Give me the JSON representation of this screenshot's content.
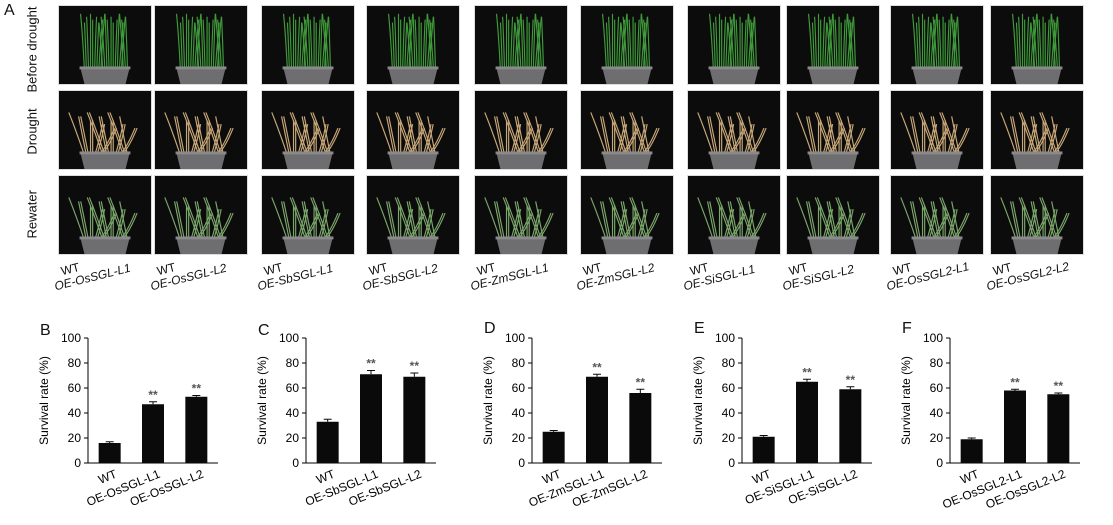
{
  "panel_a": {
    "letter": "A",
    "row_labels": [
      "Before drought",
      "Drought",
      "Rewater"
    ],
    "columns": [
      {
        "wt": "WT",
        "line_prefix": "OE-",
        "line_gene": "OsSGL",
        "line_suffix": "-L1"
      },
      {
        "wt": "WT",
        "line_prefix": "OE-",
        "line_gene": "OsSGL",
        "line_suffix": "-L2"
      },
      {
        "wt": "WT",
        "line_prefix": "OE-",
        "line_gene": "SbSGL",
        "line_suffix": "-L1"
      },
      {
        "wt": "WT",
        "line_prefix": "OE-",
        "line_gene": "SbSGL",
        "line_suffix": "-L2"
      },
      {
        "wt": "WT",
        "line_prefix": "OE-",
        "line_gene": "ZmSGL",
        "line_suffix": "-L1"
      },
      {
        "wt": "WT",
        "line_prefix": "OE-",
        "line_gene": "ZmSGL",
        "line_suffix": "-L2"
      },
      {
        "wt": "WT",
        "line_prefix": "OE-",
        "line_gene": "SiSGL",
        "line_suffix": "-L1"
      },
      {
        "wt": "WT",
        "line_prefix": "OE-",
        "line_gene": "SiSGL",
        "line_suffix": "-L2"
      },
      {
        "wt": "WT",
        "line_prefix": "OE-",
        "line_gene": "OsSGL2",
        "line_suffix": "-L1"
      },
      {
        "wt": "WT",
        "line_prefix": "OE-",
        "line_gene": "OsSGL2",
        "line_suffix": "-L2"
      }
    ],
    "colors": {
      "background": "#0c0c0c",
      "pot": "#6e6e70",
      "healthy": "#3f9a3a",
      "dry": "#c8a878",
      "recovered": "#7aa66a"
    }
  },
  "chart_data": [
    {
      "type": "bar",
      "panel": "B",
      "ylabel": "Survival rate (%)",
      "ylim": [
        0,
        100
      ],
      "yticks": [
        0,
        20,
        40,
        60,
        80,
        100
      ],
      "categories": [
        "WT",
        "OE-OsSGL-L1",
        "OE-OsSGL-L2"
      ],
      "values": [
        16,
        47,
        53
      ],
      "errors": [
        1,
        2,
        1
      ],
      "significance": [
        "",
        "**",
        "**"
      ]
    },
    {
      "type": "bar",
      "panel": "C",
      "ylabel": "Survival rate (%)",
      "ylim": [
        0,
        100
      ],
      "yticks": [
        0,
        20,
        40,
        60,
        80,
        100
      ],
      "categories": [
        "WT",
        "OE-SbSGL-L1",
        "OE-SbSGL-L2"
      ],
      "values": [
        33,
        71,
        69
      ],
      "errors": [
        2,
        3,
        3
      ],
      "significance": [
        "",
        "**",
        "**"
      ]
    },
    {
      "type": "bar",
      "panel": "D",
      "ylabel": "Survival rate (%)",
      "ylim": [
        0,
        100
      ],
      "yticks": [
        0,
        20,
        40,
        60,
        80,
        100
      ],
      "categories": [
        "WT",
        "OE-ZmSGL-L1",
        "OE-ZmSGL-L2"
      ],
      "values": [
        25,
        69,
        56
      ],
      "errors": [
        1,
        2,
        3
      ],
      "significance": [
        "",
        "**",
        "**"
      ]
    },
    {
      "type": "bar",
      "panel": "E",
      "ylabel": "Survival rate (%)",
      "ylim": [
        0,
        100
      ],
      "yticks": [
        0,
        20,
        40,
        60,
        80,
        100
      ],
      "categories": [
        "WT",
        "OE-SiSGL-L1",
        "OE-SiSGL-L2"
      ],
      "values": [
        21,
        65,
        59
      ],
      "errors": [
        1,
        2,
        2
      ],
      "significance": [
        "",
        "**",
        "**"
      ]
    },
    {
      "type": "bar",
      "panel": "F",
      "ylabel": "Survival rate (%)",
      "ylim": [
        0,
        100
      ],
      "yticks": [
        0,
        20,
        40,
        60,
        80,
        100
      ],
      "categories": [
        "WT",
        "OE-OsSGL2-L1",
        "OE-OsSGL2-L2"
      ],
      "values": [
        19,
        58,
        55
      ],
      "errors": [
        1,
        1,
        1
      ],
      "significance": [
        "",
        "**",
        "**"
      ]
    }
  ]
}
